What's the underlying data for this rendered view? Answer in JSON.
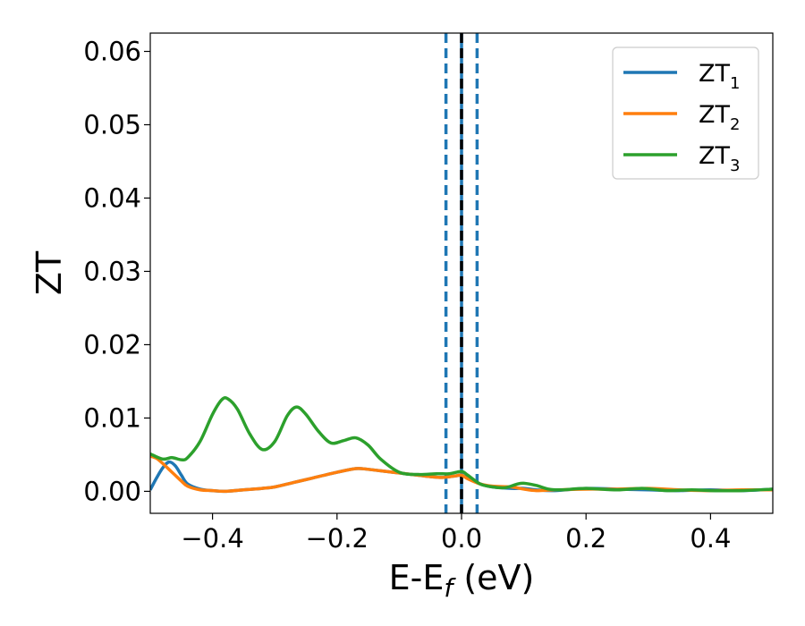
{
  "chart_data": {
    "type": "line",
    "xlabel_main": "E-E",
    "xlabel_sub": "f",
    "xlabel_unit": " (eV)",
    "ylabel": "ZT",
    "xlim": [
      -0.5,
      0.5
    ],
    "ylim": [
      -0.003,
      0.0625
    ],
    "xticks": [
      -0.4,
      -0.2,
      0.0,
      0.2,
      0.4
    ],
    "xtick_labels": [
      "−0.4",
      "−0.2",
      "0.0",
      "0.2",
      "0.4"
    ],
    "yticks": [
      0.0,
      0.01,
      0.02,
      0.03,
      0.04,
      0.05,
      0.06
    ],
    "ytick_labels": [
      "0.00",
      "0.01",
      "0.02",
      "0.03",
      "0.04",
      "0.05",
      "0.06"
    ],
    "legend_position": "top-right",
    "vertical_lines": [
      {
        "x": -0.025,
        "color": "#1f77b4",
        "style": "dashed"
      },
      {
        "x": 0.0,
        "color": "#1f77b4",
        "style": "solid"
      },
      {
        "x": 0.0,
        "color": "#000000",
        "style": "dashed"
      },
      {
        "x": 0.025,
        "color": "#1f77b4",
        "style": "dashed"
      }
    ],
    "series": [
      {
        "name": "ZT",
        "name_sub": "1",
        "color": "#1f77b4",
        "x": [
          -0.5,
          -0.49,
          -0.48,
          -0.47,
          -0.46,
          -0.45,
          -0.44,
          -0.42,
          -0.4,
          -0.38,
          -0.35,
          -0.32,
          -0.3,
          -0.27,
          -0.24,
          -0.2,
          -0.17,
          -0.15,
          -0.12,
          -0.1,
          -0.07,
          -0.05,
          -0.03,
          -0.01,
          0.0,
          0.01,
          0.03,
          0.05,
          0.08,
          0.1,
          0.12,
          0.15,
          0.2,
          0.25,
          0.3,
          0.35,
          0.4,
          0.45,
          0.5
        ],
        "y": [
          0.0002,
          0.0018,
          0.0032,
          0.004,
          0.0035,
          0.0022,
          0.001,
          0.0003,
          0.0001,
          0.0,
          0.0002,
          0.0004,
          0.0006,
          0.0012,
          0.0018,
          0.0026,
          0.0031,
          0.003,
          0.0027,
          0.0025,
          0.0022,
          0.002,
          0.0019,
          0.0021,
          0.0022,
          0.0018,
          0.001,
          0.0006,
          0.0004,
          0.0004,
          0.0002,
          0.0001,
          0.0004,
          0.0003,
          0.0002,
          0.0001,
          0.0002,
          0.0001,
          0.0003
        ]
      },
      {
        "name": "ZT",
        "name_sub": "2",
        "color": "#ff7f0e",
        "x": [
          -0.5,
          -0.49,
          -0.48,
          -0.47,
          -0.46,
          -0.45,
          -0.44,
          -0.42,
          -0.4,
          -0.38,
          -0.35,
          -0.32,
          -0.3,
          -0.27,
          -0.24,
          -0.2,
          -0.17,
          -0.15,
          -0.12,
          -0.1,
          -0.07,
          -0.05,
          -0.03,
          -0.01,
          0.0,
          0.01,
          0.03,
          0.05,
          0.08,
          0.1,
          0.12,
          0.15,
          0.2,
          0.25,
          0.3,
          0.35,
          0.4,
          0.45,
          0.5
        ],
        "y": [
          0.0048,
          0.0045,
          0.0038,
          0.003,
          0.0022,
          0.0014,
          0.0007,
          0.0002,
          0.0001,
          0.0,
          0.0002,
          0.0004,
          0.0006,
          0.0012,
          0.0018,
          0.0026,
          0.0031,
          0.003,
          0.0027,
          0.0025,
          0.0022,
          0.002,
          0.0019,
          0.0021,
          0.0022,
          0.0017,
          0.001,
          0.0007,
          0.0006,
          0.0003,
          0.0001,
          0.0002,
          0.0003,
          0.0003,
          0.0004,
          0.0002,
          0.0001,
          0.0002,
          0.0002
        ]
      },
      {
        "name": "ZT",
        "name_sub": "3",
        "color": "#2ca02c",
        "x": [
          -0.5,
          -0.48,
          -0.465,
          -0.45,
          -0.44,
          -0.42,
          -0.4,
          -0.385,
          -0.375,
          -0.36,
          -0.34,
          -0.32,
          -0.3,
          -0.28,
          -0.265,
          -0.25,
          -0.23,
          -0.21,
          -0.19,
          -0.17,
          -0.15,
          -0.13,
          -0.1,
          -0.07,
          -0.04,
          -0.02,
          0.0,
          0.01,
          0.03,
          0.05,
          0.07,
          0.09,
          0.1,
          0.12,
          0.14,
          0.16,
          0.2,
          0.25,
          0.29,
          0.33,
          0.37,
          0.4,
          0.45,
          0.5
        ],
        "y": [
          0.0051,
          0.0044,
          0.0046,
          0.0043,
          0.0046,
          0.0068,
          0.0105,
          0.0125,
          0.0126,
          0.0112,
          0.0078,
          0.0057,
          0.0068,
          0.0103,
          0.0115,
          0.0105,
          0.0082,
          0.0066,
          0.0069,
          0.0073,
          0.0063,
          0.0044,
          0.0026,
          0.0023,
          0.0024,
          0.0024,
          0.0027,
          0.0022,
          0.001,
          0.0006,
          0.0005,
          0.001,
          0.0011,
          0.0008,
          0.0003,
          0.0002,
          0.0004,
          0.0002,
          0.0004,
          0.0001,
          0.0002,
          0.0001,
          0.0001,
          0.0003
        ]
      }
    ]
  }
}
